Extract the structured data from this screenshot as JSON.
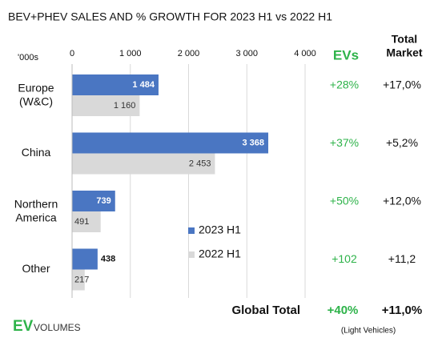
{
  "chart_data": {
    "type": "bar",
    "orientation": "horizontal",
    "title": "BEV+PHEV SALES AND % GROWTH FOR 2023 H1 vs 2022 H1",
    "unit_label": "'000s",
    "categories": [
      "Europe\n(W&C)",
      "China",
      "Northern\nAmerica",
      "Other"
    ],
    "series": [
      {
        "name": "2023 H1",
        "color": "#4a76c2",
        "values": [
          1484,
          3368,
          739,
          438
        ],
        "value_labels": [
          "1 484",
          "3 368",
          "739",
          "438"
        ]
      },
      {
        "name": "2022 H1",
        "color": "#d9d9d9",
        "values": [
          1160,
          2453,
          491,
          217
        ],
        "value_labels": [
          "1 160",
          "2 453",
          "491",
          "217"
        ]
      }
    ],
    "xlim": [
      0,
      4000
    ],
    "xticks": [
      0,
      {
        "value": 1000,
        "label": "1 000"
      },
      {
        "value": 2000,
        "label": "2 000"
      },
      {
        "value": 3000,
        "label": "3 000"
      },
      {
        "value": 4000,
        "label": "4 000"
      }
    ],
    "grid": true,
    "legend": "center",
    "ev_growth": {
      "header": "EVs",
      "color": "#2eb34a",
      "values": [
        "+28%",
        "+37%",
        "+50%",
        "+102"
      ]
    },
    "market_growth": {
      "header": "Total\nMarket",
      "values": [
        "+17,0%",
        "+5,2%",
        "+12,0%",
        "+11,2"
      ]
    },
    "global_total": {
      "label": "Global Total",
      "ev": "+40%",
      "market": "+11,0%"
    },
    "note": "(Light Vehicles)",
    "logo": {
      "mark": "EV",
      "text": "VOLUMES"
    }
  }
}
